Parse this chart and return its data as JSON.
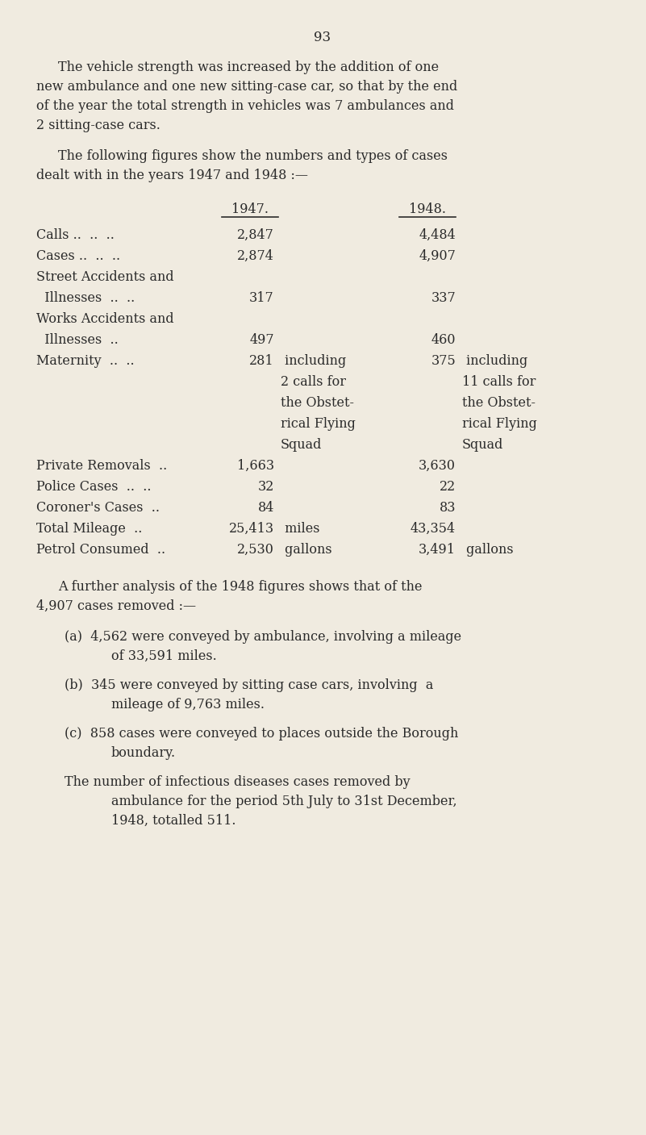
{
  "bg_color": "#f0ebe0",
  "text_color": "#2a2a2a",
  "page_number": "93",
  "col_header_1947": "1947.",
  "col_header_1948": "1948."
}
